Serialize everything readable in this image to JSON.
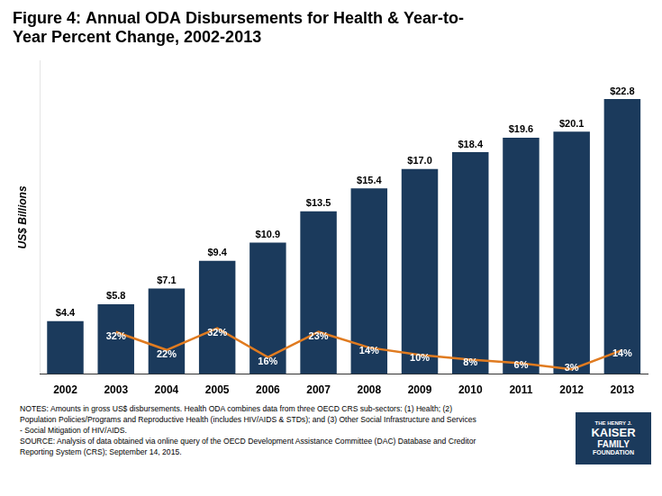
{
  "chart_data": {
    "type": "bar",
    "title": [
      "Figure 4: Annual ODA Disbursements for Health & Year-to-",
      "Year Percent Change, 2002-2013"
    ],
    "ylabel": "US$ Billions",
    "categories": [
      2002,
      2003,
      2004,
      2005,
      2006,
      2007,
      2008,
      2009,
      2010,
      2011,
      2012,
      2013
    ],
    "series": [
      {
        "type": "bar",
        "color": "#1b3a5c",
        "values": [
          4.4,
          5.8,
          7.1,
          9.4,
          10.9,
          13.5,
          15.4,
          17.0,
          18.4,
          19.6,
          20.1,
          22.8
        ],
        "value_labels": [
          "$4.4",
          "$5.8",
          "$7.1",
          "$9.4",
          "$10.9",
          "$13.5",
          "$15.4",
          "$17.0",
          "$18.4",
          "$19.6",
          "$20.1",
          "$22.8"
        ]
      },
      {
        "type": "line",
        "color": "#e07b20",
        "values": [
          null,
          3.5,
          2.0,
          3.8,
          1.4,
          3.5,
          2.2,
          1.6,
          1.2,
          0.9,
          0.4,
          2.0
        ]
      }
    ],
    "ylim": [
      0,
      26
    ],
    "grid": false,
    "data_labels": true,
    "tick_labels": "x",
    "annotations": [
      {
        "text": "32%",
        "x": 2003,
        "y": 2.7
      },
      {
        "text": "22%",
        "x": 2004,
        "y": 1.2
      },
      {
        "text": "32%",
        "x": 2005,
        "y": 3.0
      },
      {
        "text": "16%",
        "x": 2006,
        "y": 0.6
      },
      {
        "text": "23%",
        "x": 2007,
        "y": 2.7
      },
      {
        "text": "14%",
        "x": 2008,
        "y": 1.5
      },
      {
        "text": "10%",
        "x": 2009,
        "y": 0.9
      },
      {
        "text": "8%",
        "x": 2010,
        "y": 0.5
      },
      {
        "text": "6%",
        "x": 2011,
        "y": 0.3
      },
      {
        "text": "3%",
        "x": 2012,
        "y": 0.05
      },
      {
        "text": "14%",
        "x": 2013,
        "y": 1.3
      }
    ],
    "notes": [
      "NOTES: Amounts in gross US$ disbursements. Health ODA combines data from three OECD CRS sub-sectors: (1) Health; (2)",
      "Population Policies/Programs and Reproductive Health (includes HIV/AIDS & STDs); and (3) Other Social Infrastructure and Services",
      "- Social Mitigation of HIV/AIDS.",
      "SOURCE: Analysis of data obtained via online query of the OECD Development Assistance Committee (DAC) Database and Creditor",
      "Reporting System (CRS); September 14, 2015."
    ],
    "logo": {
      "color": "#1b3a5c",
      "text": [
        "THE HENRY J.",
        "KAISER",
        "FAMILY",
        "FOUNDATION"
      ]
    }
  }
}
